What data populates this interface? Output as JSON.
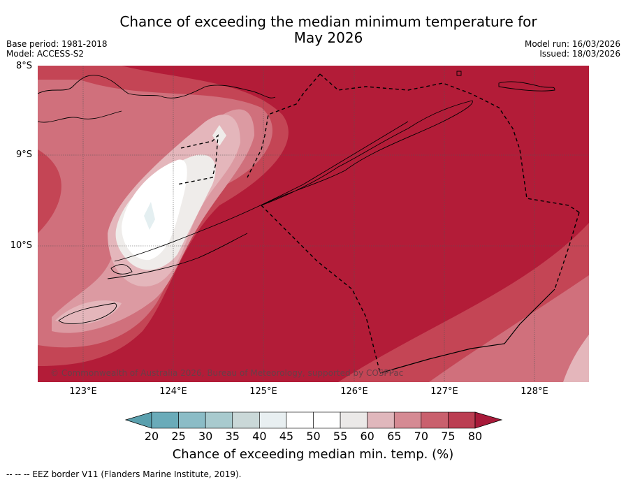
{
  "header": {
    "title_line1": "Chance of exceeding the median minimum temperature for",
    "title_line2": "May 2026",
    "base_period": "Base period: 1981-2018",
    "model": "Model: ACCESS-S2",
    "model_run": "Model run: 16/03/2026",
    "issued": "Issued: 18/03/2026"
  },
  "map": {
    "lat_labels": [
      "8°S",
      "9°S",
      "10°S"
    ],
    "lon_labels": [
      "123°E",
      "124°E",
      "125°E",
      "126°E",
      "127°E",
      "128°E"
    ],
    "copyright": "© Commonwealth of Australia 2026, Bureau of Meteorology, supported by COSPPac",
    "colors": {
      "c80": "#b31c38",
      "c75": "#c44555",
      "c70": "#d0707c",
      "c65": "#dc9aa2",
      "c60": "#e4b6bb",
      "c55": "#efecea",
      "c50": "#ffffff",
      "c45": "#e4eff1",
      "grid": "#555555",
      "coast": "#000000"
    }
  },
  "colorbar": {
    "ticks": [
      "20",
      "25",
      "30",
      "35",
      "40",
      "45",
      "50",
      "55",
      "60",
      "65",
      "70",
      "75",
      "80"
    ],
    "colors": [
      "#5aa0ae",
      "#6aabb9",
      "#8bbcc6",
      "#a8cace",
      "#cad8d8",
      "#e8eff1",
      "#ffffff",
      "#ffffff",
      "#ebe9e8",
      "#e0b7bc",
      "#d58a93",
      "#c9606d",
      "#bb3e52",
      "#a81a3a"
    ],
    "label": "Chance of exceeding median min. temp. (%)"
  },
  "footer": {
    "eez": "--  --  -- EEZ border V11 (Flanders Marine Institute, 2019)."
  }
}
